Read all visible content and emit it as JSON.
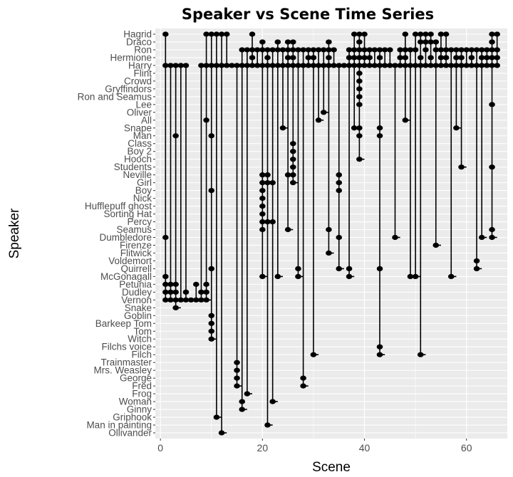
{
  "chart_data": {
    "type": "scatter",
    "title": "Speaker vs Scene Time Series",
    "xlabel": "Scene",
    "ylabel": "Speaker",
    "xlim": [
      -1,
      68
    ],
    "x_ticks": [
      0,
      20,
      40,
      60
    ],
    "grid": true,
    "background": "#ebebeb",
    "gridline_color": "#ffffff",
    "point_color": "#000000",
    "connector_color": "#000000",
    "speakers": [
      "Hagrid",
      "Draco",
      "Ron",
      "Hermione",
      "Harry",
      "Flint",
      "Crowd",
      "Gryffindors",
      "Ron and Seamus",
      "Lee",
      "Oliver",
      "All",
      "Snape",
      "Man",
      "Class",
      "Boy 2",
      "Hooch",
      "Students",
      "Neville",
      "Girl",
      "Boy",
      "Nick",
      "Hufflepuff ghost",
      "Sorting Hat",
      "Percy",
      "Seamus",
      "Dumbledore",
      "Firenze",
      "Flitwick",
      "Voldemort",
      "Quirrell",
      "McGonagall",
      "Petunia",
      "Dudley",
      "Vernon",
      "Snake",
      "Goblin",
      "Barkeep Tom",
      "Tom",
      "Witch",
      "Filchs voice",
      "Filch",
      "Trainmaster",
      "Mrs. Weasley",
      "George",
      "Fred",
      "Frog",
      "Woman",
      "Ginny",
      "Griphook",
      "Man in painting",
      "Ollivander"
    ],
    "series": [
      {
        "scene": 1,
        "speakers": [
          "Hagrid",
          "Harry",
          "Dumbledore",
          "McGonagall",
          "Petunia",
          "Dudley",
          "Vernon"
        ]
      },
      {
        "scene": 2,
        "speakers": [
          "Harry",
          "Petunia",
          "Dudley",
          "Vernon"
        ]
      },
      {
        "scene": 3,
        "speakers": [
          "Harry",
          "Man",
          "Petunia",
          "Dudley",
          "Vernon",
          "Snake"
        ]
      },
      {
        "scene": 4,
        "speakers": [
          "Harry",
          "Vernon"
        ]
      },
      {
        "scene": 5,
        "speakers": [
          "Harry",
          "Dudley",
          "Vernon"
        ]
      },
      {
        "scene": 6,
        "speakers": [
          "Vernon"
        ]
      },
      {
        "scene": 7,
        "speakers": [
          "Petunia",
          "Vernon"
        ]
      },
      {
        "scene": 8,
        "speakers": [
          "Harry",
          "Dudley",
          "Vernon"
        ]
      },
      {
        "scene": 9,
        "speakers": [
          "Hagrid",
          "Harry",
          "All",
          "Petunia",
          "Dudley",
          "Vernon"
        ]
      },
      {
        "scene": 10,
        "speakers": [
          "Hagrid",
          "Harry",
          "Man",
          "Boy",
          "Quirrell",
          "Goblin",
          "Barkeep Tom",
          "Tom",
          "Witch"
        ]
      },
      {
        "scene": 11,
        "speakers": [
          "Hagrid",
          "Harry",
          "Griphook"
        ]
      },
      {
        "scene": 12,
        "speakers": [
          "Hagrid",
          "Harry",
          "Ollivander"
        ]
      },
      {
        "scene": 13,
        "speakers": [
          "Hagrid",
          "Harry"
        ]
      },
      {
        "scene": 14,
        "speakers": [
          "Harry"
        ]
      },
      {
        "scene": 15,
        "speakers": [
          "Harry",
          "Trainmaster",
          "Mrs. Weasley",
          "George",
          "Fred"
        ]
      },
      {
        "scene": 16,
        "speakers": [
          "Ron",
          "Harry",
          "Woman",
          "Ginny"
        ]
      },
      {
        "scene": 17,
        "speakers": [
          "Ron",
          "Harry",
          "Frog"
        ]
      },
      {
        "scene": 18,
        "speakers": [
          "Hagrid",
          "Ron",
          "Hermione",
          "Harry"
        ]
      },
      {
        "scene": 19,
        "speakers": [
          "Ron",
          "Harry"
        ]
      },
      {
        "scene": 20,
        "speakers": [
          "Draco",
          "Ron",
          "Harry",
          "Neville",
          "Girl",
          "Boy",
          "Nick",
          "Hufflepuff ghost",
          "Sorting Hat",
          "Percy",
          "Seamus",
          "McGonagall"
        ]
      },
      {
        "scene": 21,
        "speakers": [
          "Ron",
          "Hermione",
          "Harry",
          "Neville",
          "Girl",
          "Percy",
          "Man in painting"
        ]
      },
      {
        "scene": 22,
        "speakers": [
          "Ron",
          "Harry",
          "Girl",
          "Percy",
          "Woman"
        ]
      },
      {
        "scene": 23,
        "speakers": [
          "Draco",
          "Ron",
          "Harry",
          "McGonagall"
        ]
      },
      {
        "scene": 24,
        "speakers": [
          "Ron",
          "Harry",
          "Snape"
        ]
      },
      {
        "scene": 25,
        "speakers": [
          "Draco",
          "Ron",
          "Hermione",
          "Harry",
          "Neville",
          "Seamus"
        ]
      },
      {
        "scene": 26,
        "speakers": [
          "Draco",
          "Ron",
          "Hermione",
          "Harry",
          "Class",
          "Boy 2",
          "Hooch",
          "Students",
          "Neville",
          "Girl"
        ]
      },
      {
        "scene": 27,
        "speakers": [
          "Ron",
          "Harry",
          "Quirrell",
          "McGonagall"
        ]
      },
      {
        "scene": 28,
        "speakers": [
          "Ron",
          "Harry",
          "George",
          "Fred"
        ]
      },
      {
        "scene": 29,
        "speakers": [
          "Ron",
          "Hermione",
          "Harry"
        ]
      },
      {
        "scene": 30,
        "speakers": [
          "Ron",
          "Hermione",
          "Harry",
          "Filch"
        ]
      },
      {
        "scene": 31,
        "speakers": [
          "Ron",
          "Harry",
          "All"
        ]
      },
      {
        "scene": 32,
        "speakers": [
          "Ron",
          "Harry",
          "Oliver"
        ]
      },
      {
        "scene": 33,
        "speakers": [
          "Draco",
          "Ron",
          "Hermione",
          "Harry",
          "Seamus",
          "Flitwick"
        ]
      },
      {
        "scene": 34,
        "speakers": [
          "Ron",
          "Harry"
        ]
      },
      {
        "scene": 35,
        "speakers": [
          "Harry",
          "Neville",
          "Girl",
          "Boy",
          "Dumbledore",
          "Quirrell"
        ]
      },
      {
        "scene": 36,
        "speakers": [
          "Harry"
        ]
      },
      {
        "scene": 37,
        "speakers": [
          "Ron",
          "Hermione",
          "Harry",
          "Quirrell",
          "McGonagall"
        ]
      },
      {
        "scene": 38,
        "speakers": [
          "Hagrid",
          "Ron",
          "Hermione",
          "Harry",
          "Snape"
        ]
      },
      {
        "scene": 39,
        "speakers": [
          "Hagrid",
          "Draco",
          "Ron",
          "Hermione",
          "Harry",
          "Flint",
          "Crowd",
          "Gryffindors",
          "Ron and Seamus",
          "Lee",
          "Snape",
          "Man",
          "Hooch"
        ]
      },
      {
        "scene": 40,
        "speakers": [
          "Hagrid",
          "Ron",
          "Hermione",
          "Harry"
        ]
      },
      {
        "scene": 41,
        "speakers": [
          "Ron",
          "Hermione",
          "Harry"
        ]
      },
      {
        "scene": 42,
        "speakers": [
          "Ron",
          "Harry"
        ]
      },
      {
        "scene": 43,
        "speakers": [
          "Ron",
          "Hermione",
          "Harry",
          "Snape",
          "Man",
          "Quirrell",
          "Filchs voice",
          "Filch"
        ]
      },
      {
        "scene": 44,
        "speakers": [
          "Ron",
          "Harry"
        ]
      },
      {
        "scene": 45,
        "speakers": [
          "Ron",
          "Harry"
        ]
      },
      {
        "scene": 46,
        "speakers": [
          "Harry",
          "Dumbledore"
        ]
      },
      {
        "scene": 47,
        "speakers": [
          "Ron",
          "Hermione",
          "Harry"
        ]
      },
      {
        "scene": 48,
        "speakers": [
          "Hagrid",
          "Ron",
          "Hermione",
          "Harry",
          "All"
        ]
      },
      {
        "scene": 49,
        "speakers": [
          "Ron",
          "Harry",
          "McGonagall"
        ]
      },
      {
        "scene": 50,
        "speakers": [
          "Hagrid",
          "Ron",
          "Harry",
          "McGonagall"
        ]
      },
      {
        "scene": 51,
        "speakers": [
          "Hagrid",
          "Draco",
          "Hermione",
          "Harry",
          "Filch"
        ]
      },
      {
        "scene": 52,
        "speakers": [
          "Hagrid",
          "Draco",
          "Ron",
          "Harry"
        ]
      },
      {
        "scene": 53,
        "speakers": [
          "Hagrid",
          "Draco",
          "Hermione",
          "Harry"
        ]
      },
      {
        "scene": 54,
        "speakers": [
          "Draco",
          "Ron",
          "Harry",
          "Firenze"
        ]
      },
      {
        "scene": 55,
        "speakers": [
          "Hagrid",
          "Ron",
          "Hermione",
          "Harry"
        ]
      },
      {
        "scene": 56,
        "speakers": [
          "Hagrid",
          "Ron",
          "Hermione",
          "Harry"
        ]
      },
      {
        "scene": 57,
        "speakers": [
          "Ron",
          "Harry",
          "McGonagall"
        ]
      },
      {
        "scene": 58,
        "speakers": [
          "Ron",
          "Hermione",
          "Harry",
          "Snape"
        ]
      },
      {
        "scene": 59,
        "speakers": [
          "Ron",
          "Hermione",
          "Harry",
          "Students"
        ]
      },
      {
        "scene": 60,
        "speakers": [
          "Ron",
          "Harry"
        ]
      },
      {
        "scene": 61,
        "speakers": [
          "Ron",
          "Hermione",
          "Harry"
        ]
      },
      {
        "scene": 62,
        "speakers": [
          "Ron",
          "Harry",
          "Voldemort",
          "Quirrell"
        ]
      },
      {
        "scene": 63,
        "speakers": [
          "Ron",
          "Hermione",
          "Harry",
          "Dumbledore"
        ]
      },
      {
        "scene": 64,
        "speakers": [
          "Ron",
          "Hermione",
          "Harry"
        ]
      },
      {
        "scene": 65,
        "speakers": [
          "Hagrid",
          "Draco",
          "Ron",
          "Hermione",
          "Harry",
          "Lee",
          "Students",
          "Seamus",
          "Dumbledore"
        ]
      },
      {
        "scene": 66,
        "speakers": [
          "Hagrid",
          "Ron",
          "Hermione",
          "Harry"
        ]
      }
    ]
  }
}
